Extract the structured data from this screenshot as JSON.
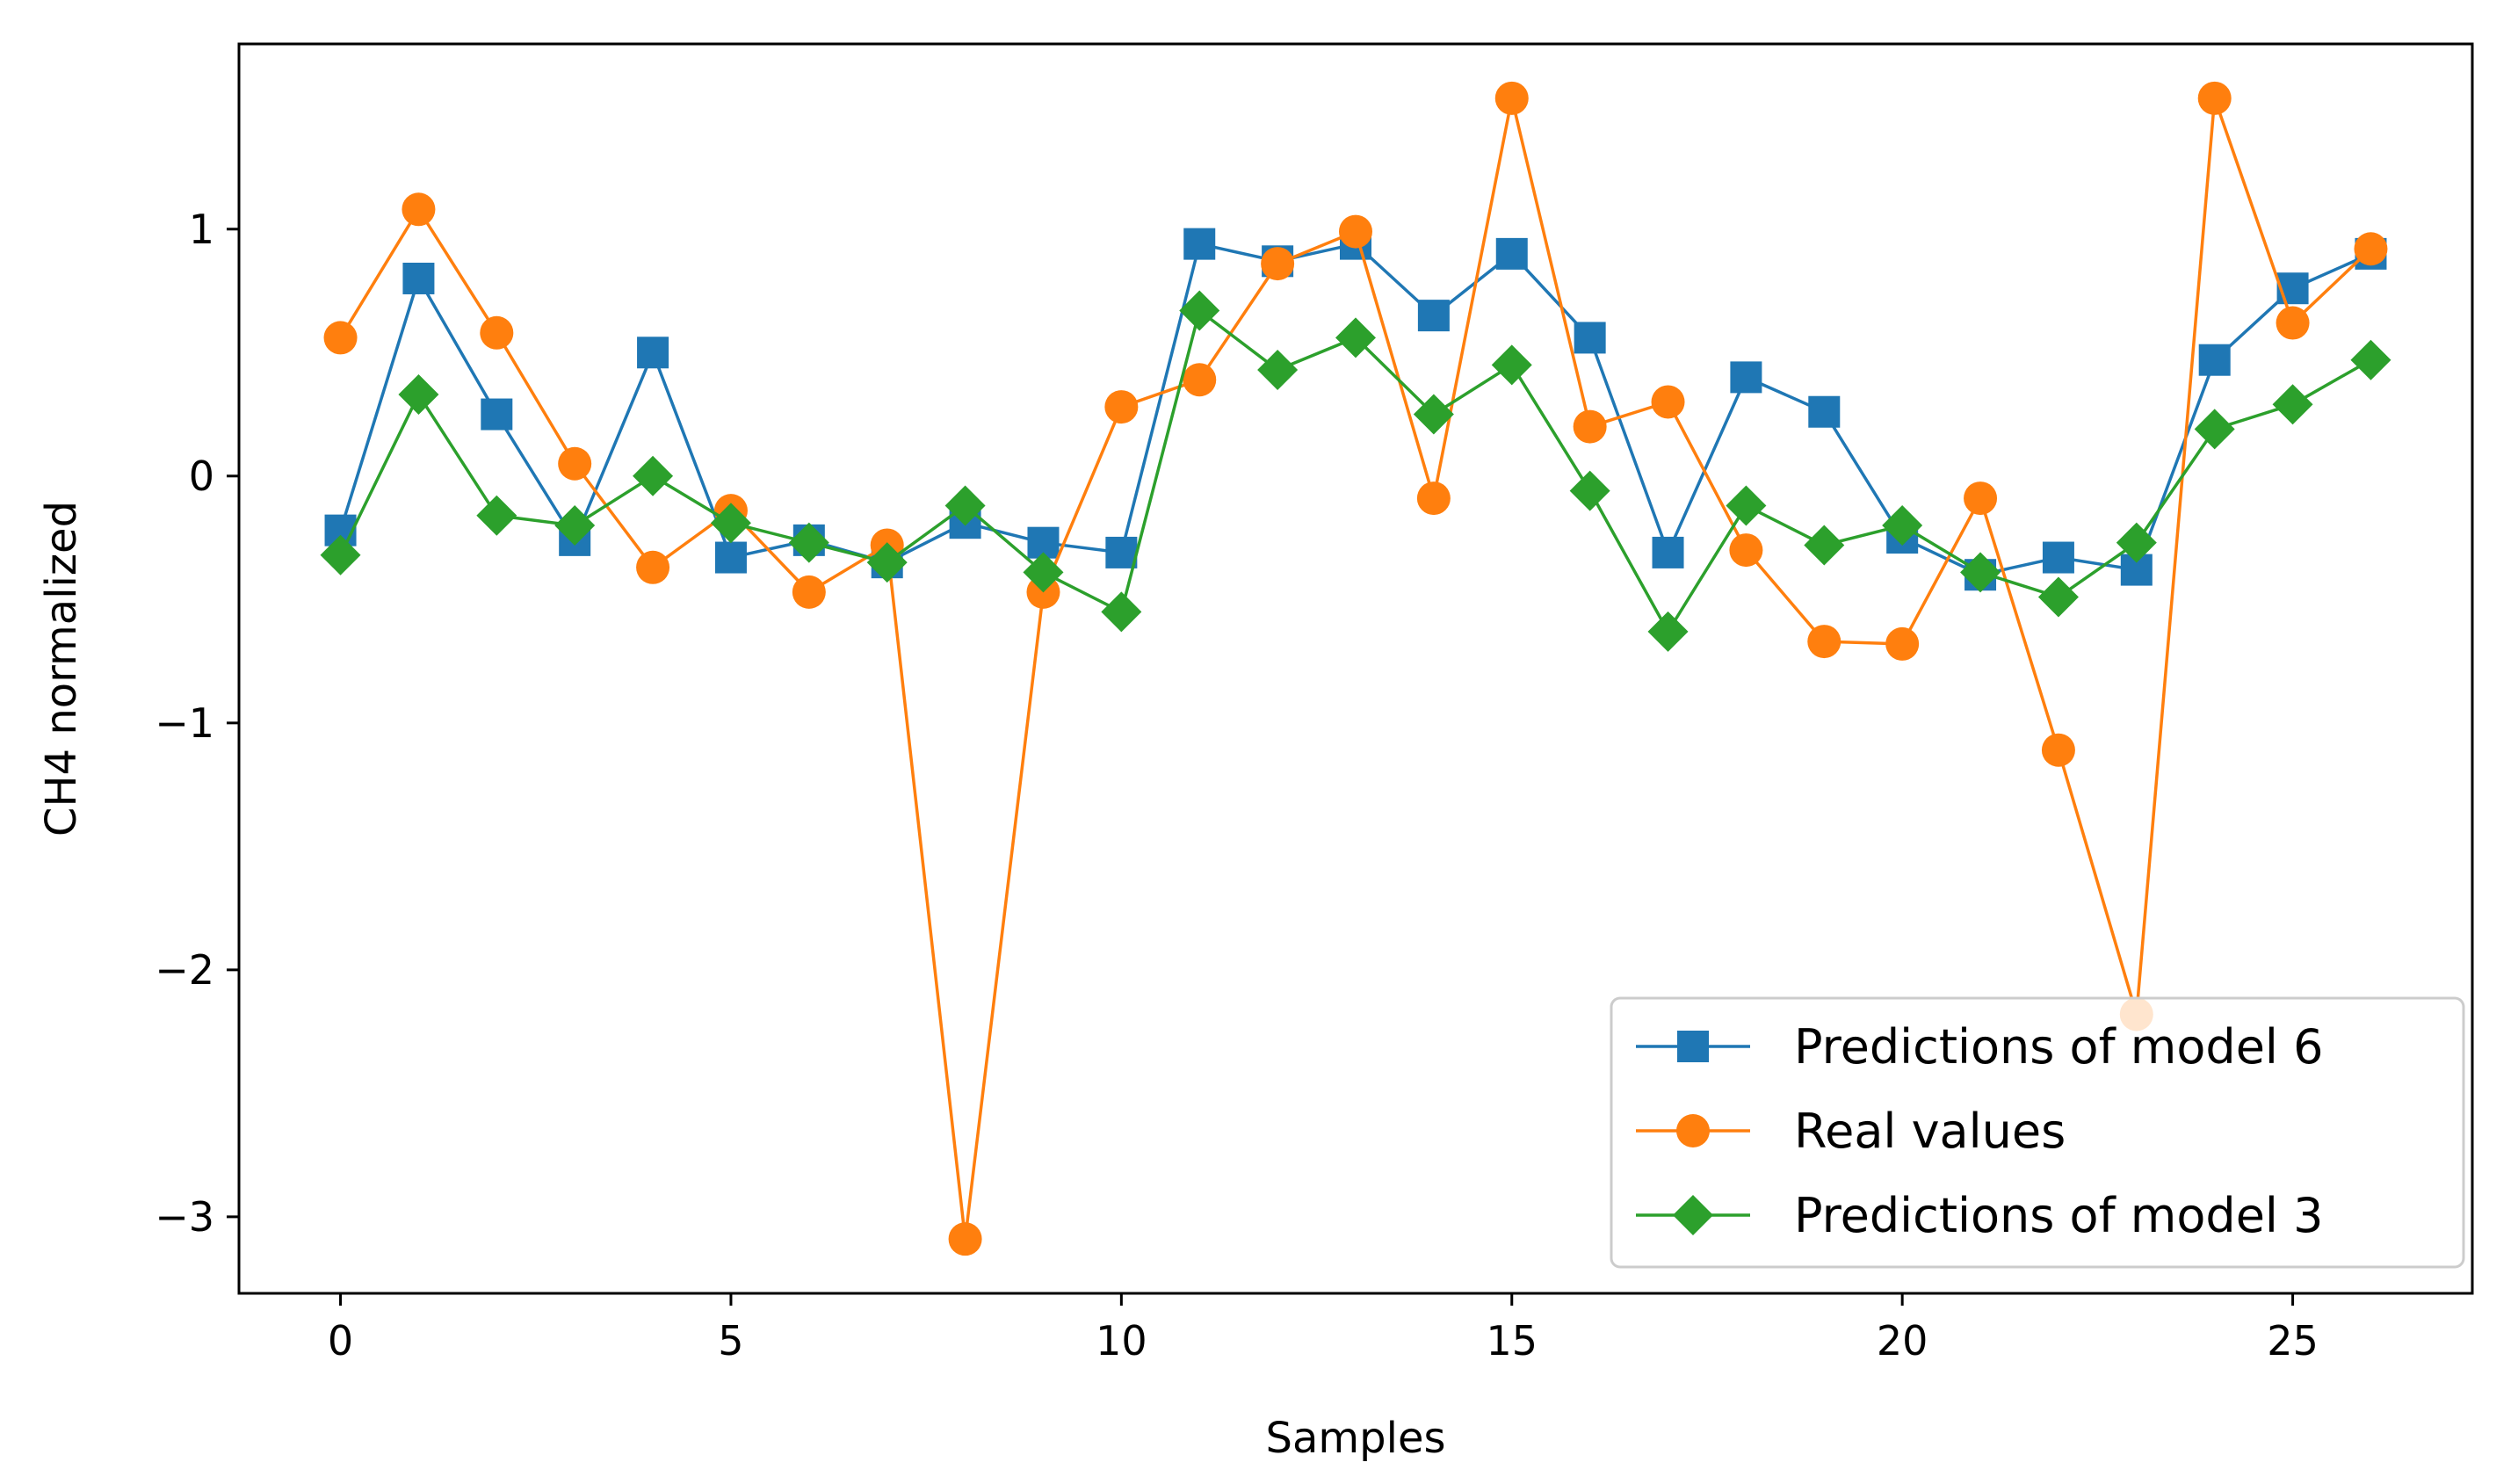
{
  "chart_data": {
    "type": "line",
    "title": "",
    "xlabel": "Samples",
    "ylabel": "CH4 normalized",
    "xlim": [
      -1.3,
      27.3
    ],
    "ylim": [
      -3.31,
      1.75
    ],
    "x_ticks": [
      0,
      5,
      10,
      15,
      20,
      25
    ],
    "x_tick_labels": [
      "0",
      "5",
      "10",
      "15",
      "20",
      "25"
    ],
    "y_ticks": [
      1,
      0,
      -1,
      -2,
      -3
    ],
    "y_tick_labels": [
      "1",
      "0",
      "−1",
      "−2",
      "−3"
    ],
    "grid": false,
    "legend_position": "lower-right",
    "x": [
      0,
      1,
      2,
      3,
      4,
      5,
      6,
      7,
      8,
      9,
      10,
      11,
      12,
      13,
      14,
      15,
      16,
      17,
      18,
      19,
      20,
      21,
      22,
      23,
      24,
      25,
      26
    ],
    "series": [
      {
        "name": "Predictions of model 6",
        "color": "#1f77b4",
        "marker": "square",
        "values": [
          -0.22,
          0.8,
          0.25,
          -0.26,
          0.5,
          -0.33,
          -0.26,
          -0.35,
          -0.19,
          -0.27,
          -0.31,
          0.94,
          0.87,
          0.94,
          0.65,
          0.9,
          0.56,
          -0.31,
          0.4,
          0.26,
          -0.25,
          -0.4,
          -0.33,
          -0.38,
          0.47,
          0.76,
          0.9
        ]
      },
      {
        "name": "Real values",
        "color": "#ff7f0e",
        "marker": "circle",
        "values": [
          0.56,
          1.08,
          0.58,
          0.05,
          -0.37,
          -0.14,
          -0.47,
          -0.28,
          -3.09,
          -0.47,
          0.28,
          0.39,
          0.86,
          0.99,
          -0.09,
          1.53,
          0.2,
          0.3,
          -0.3,
          -0.67,
          -0.68,
          -0.09,
          -1.11,
          -2.18,
          1.53,
          0.62,
          0.92
        ]
      },
      {
        "name": "Predictions of model 3",
        "color": "#2ca02c",
        "marker": "diamond",
        "values": [
          -0.32,
          0.33,
          -0.16,
          -0.2,
          0.0,
          -0.19,
          -0.27,
          -0.35,
          -0.12,
          -0.39,
          -0.55,
          0.67,
          0.43,
          0.56,
          0.25,
          0.45,
          -0.06,
          -0.63,
          -0.12,
          -0.28,
          -0.2,
          -0.39,
          -0.49,
          -0.27,
          0.19,
          0.29,
          0.47
        ]
      }
    ]
  }
}
